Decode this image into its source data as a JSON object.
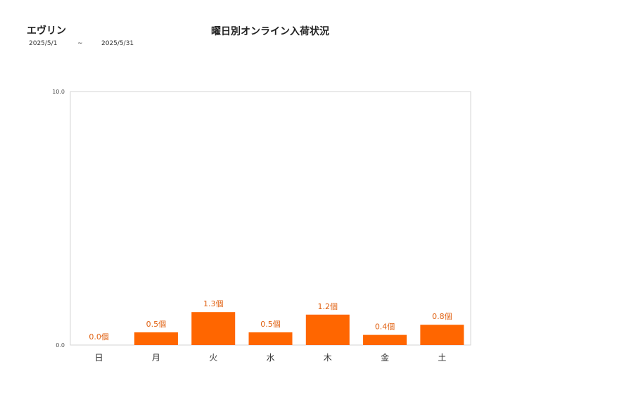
{
  "header": {
    "shop_name": "エヴリン",
    "period_start": "2025/5/1",
    "period_sep": "~",
    "period_end": "2025/5/31"
  },
  "colors": {
    "bar": "#ff6600",
    "label": "#e06010",
    "axis": "#cfcfcf"
  },
  "chart_data": {
    "type": "bar",
    "title": "曜日別オンライン入荷状況",
    "xlabel": "",
    "ylabel": "",
    "ylim": [
      0,
      10
    ],
    "yticks": [
      "0.0",
      "10.0"
    ],
    "categories": [
      "日",
      "月",
      "火",
      "水",
      "木",
      "金",
      "土"
    ],
    "values": [
      0.0,
      0.5,
      1.3,
      0.5,
      1.2,
      0.4,
      0.8
    ],
    "data_labels": [
      "0.0個",
      "0.5個",
      "1.3個",
      "0.5個",
      "1.2個",
      "0.4個",
      "0.8個"
    ],
    "grid": false,
    "legend": "none"
  }
}
